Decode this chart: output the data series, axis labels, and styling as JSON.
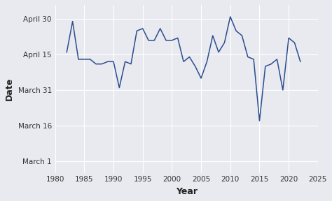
{
  "years": [
    1982,
    1983,
    1984,
    1985,
    1986,
    1987,
    1988,
    1989,
    1990,
    1991,
    1992,
    1993,
    1994,
    1995,
    1996,
    1997,
    1998,
    1999,
    2000,
    2001,
    2002,
    2003,
    2004,
    2005,
    2006,
    2007,
    2008,
    2009,
    2010,
    2011,
    2012,
    2013,
    2014,
    2015,
    2016,
    2017,
    2018,
    2019,
    2020,
    2021,
    2022
  ],
  "values": [
    106,
    119,
    103,
    103,
    103,
    101,
    101,
    102,
    102,
    91,
    102,
    101,
    115,
    116,
    111,
    111,
    116,
    111,
    111,
    112,
    102,
    104,
    100,
    95,
    102,
    113,
    106,
    110,
    121,
    115,
    113,
    104,
    103,
    77,
    100,
    101,
    103,
    90,
    112,
    110,
    102
  ],
  "ytick_labels": [
    "March 1",
    "March 16",
    "March 31",
    "April 15",
    "April 30"
  ],
  "ytick_values": [
    60,
    75,
    90,
    105,
    120
  ],
  "xlim": [
    1980,
    2025
  ],
  "ylim": [
    55,
    126
  ],
  "xlabel": "Year",
  "ylabel": "Date",
  "line_color": "#2d4d8e",
  "bg_color": "#e8eaf0",
  "fig_bg_color": "#e8eaf0",
  "grid_color": "#ffffff",
  "xticks": [
    1980,
    1985,
    1990,
    1995,
    2000,
    2005,
    2010,
    2015,
    2020,
    2025
  ],
  "tick_fontsize": 7.5,
  "label_fontsize": 9
}
